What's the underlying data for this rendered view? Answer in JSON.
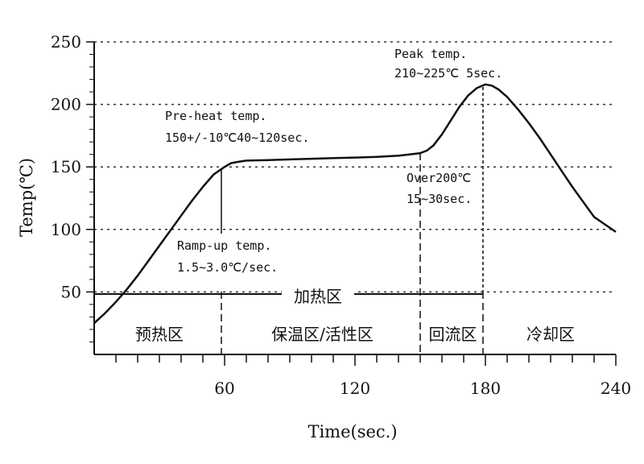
{
  "chart_data": {
    "type": "line",
    "xlabel": "Time(sec.)",
    "ylabel": "Temp(℃)",
    "xlim": [
      0,
      240
    ],
    "ylim": [
      0,
      250
    ],
    "x_ticks": [
      60,
      120,
      180,
      240
    ],
    "y_ticks": [
      50,
      100,
      150,
      200,
      250
    ],
    "grid": true,
    "series": [
      {
        "x": [
          0,
          5,
          10,
          15,
          20,
          25,
          30,
          35,
          40,
          45,
          50,
          55,
          60,
          63,
          66,
          70,
          80,
          90,
          100,
          110,
          120,
          130,
          140,
          145,
          150,
          153,
          156,
          160,
          164,
          168,
          172,
          176,
          180,
          183,
          186,
          190,
          195,
          200,
          205,
          210,
          215,
          220,
          225,
          230,
          235,
          240
        ],
        "y": [
          25,
          33,
          42,
          52,
          63,
          75,
          87,
          99,
          111,
          123,
          134,
          144,
          150,
          153,
          154,
          155,
          155.5,
          156,
          156.5,
          157,
          157.5,
          158,
          159,
          160,
          161,
          163,
          167,
          176,
          187,
          198,
          207,
          213,
          216,
          215,
          212,
          206,
          196,
          185,
          173,
          160,
          147,
          134,
          122,
          110,
          104,
          98
        ]
      }
    ],
    "annotations": {
      "peak_line1": "Peak temp.",
      "peak_line2": "210~225℃ 5sec.",
      "preheat_line1": "Pre-heat temp.",
      "preheat_line2": "150+/-10℃40~120sec.",
      "over200_line1": "Over200℃",
      "over200_line2": "15~30sec.",
      "ramp_line1": "Ramp-up temp.",
      "ramp_line2": "1.5~3.0℃/sec."
    },
    "heating_zone_label": "加热区",
    "zones": [
      {
        "label": "预热区",
        "start": 0,
        "end": 60
      },
      {
        "label": "保温区/活性区",
        "start": 60,
        "end": 150
      },
      {
        "label": "回流区",
        "start": 150,
        "end": 180
      },
      {
        "label": "冷却区",
        "start": 180,
        "end": 240
      }
    ]
  }
}
